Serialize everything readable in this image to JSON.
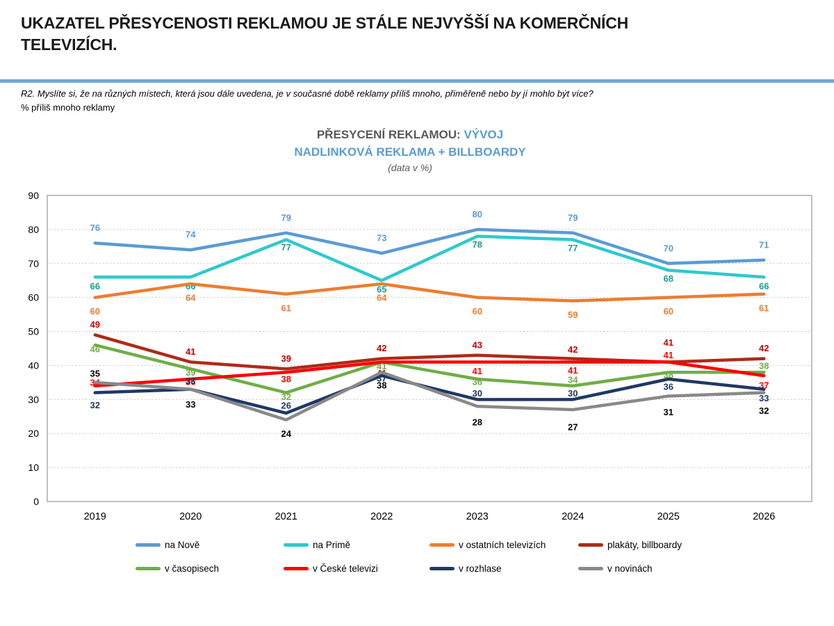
{
  "header": {
    "title": "UKAZATEL PŘESYCENOSTI REKLAMOU JE STÁLE NEJVYŠŠÍ NA KOMERČNÍCH TELEVIZÍCH.",
    "question": "R2. Myslíte si, že na různých místech, která jsou dále uvedena, je v současné době reklamy příliš mnoho, přiměřeně nebo by jí mohlo být více?",
    "metric_note": "% příliš mnoho reklamy"
  },
  "chart_title": {
    "line1_gray": "PŘESYCENÍ REKLAMOU:",
    "line1_blue": "VÝVOJ",
    "line2": "NADLINKOVÁ REKLAMA + BILLBOARDY",
    "line3": "(data v %)"
  },
  "colors": {
    "divider_blue": "#71A8D7",
    "accent_blue": "#5B9BD5",
    "title_gray": "#595959",
    "grid_gray": "#C8C8C8",
    "frame_gray": "#C0C0C0"
  },
  "chart_data": {
    "type": "line",
    "x": [
      "2019",
      "2020",
      "2021",
      "2022",
      "2023",
      "2024",
      "2025",
      "2026"
    ],
    "ylim": [
      0,
      90
    ],
    "ytick_step": 10,
    "grid": true,
    "legend_position": "bottom",
    "series": [
      {
        "name": "na Nově",
        "color": "#5B9BD5",
        "label_color": "#5B9BD5",
        "values": [
          76,
          74,
          79,
          73,
          80,
          79,
          70,
          71
        ]
      },
      {
        "name": "na Primě",
        "color": "#2EC9CE",
        "label_color": "#1A9E8F",
        "values": [
          66,
          66,
          77,
          65,
          78,
          77,
          68,
          66
        ]
      },
      {
        "name": "v ostatních televizích",
        "color": "#ED7D31",
        "label_color": "#ED7D31",
        "values": [
          60,
          64,
          61,
          64,
          60,
          59,
          60,
          61
        ]
      },
      {
        "name": "plakáty, billboardy",
        "color": "#AE2B18",
        "label_color": "#C00000",
        "values": [
          49,
          41,
          39,
          42,
          43,
          42,
          41,
          42
        ]
      },
      {
        "name": "v časopisech",
        "color": "#70AD47",
        "label_color": "#70AD47",
        "values": [
          46,
          39,
          32,
          41,
          36,
          34,
          38,
          38
        ]
      },
      {
        "name": "v České televizi",
        "color": "#FF0000",
        "label_color": "#FF0000",
        "values": [
          34,
          36,
          38,
          41,
          41,
          41,
          41,
          37
        ]
      },
      {
        "name": "v rozhlase",
        "color": "#1F3864",
        "label_color": "#1F3864",
        "values": [
          32,
          33,
          26,
          37,
          30,
          30,
          36,
          33
        ]
      },
      {
        "name": "v novinách",
        "color": "#898989",
        "label_color": "#000000",
        "values": [
          35,
          33,
          24,
          38,
          28,
          27,
          31,
          32
        ]
      }
    ]
  }
}
